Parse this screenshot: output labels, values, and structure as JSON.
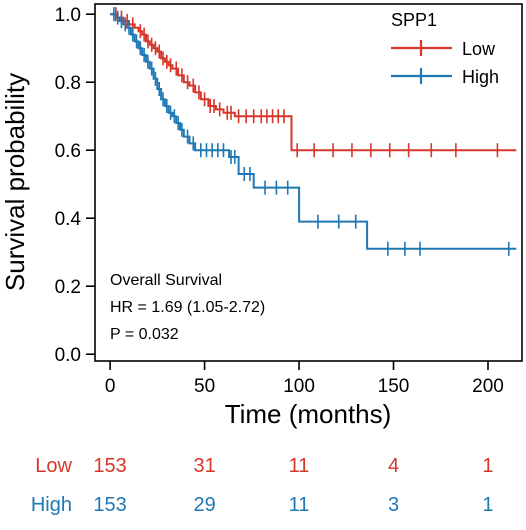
{
  "chart_data": {
    "type": "line",
    "subtype": "kaplan-meier",
    "xlabel": "Time (months)",
    "ylabel": "Survival probability",
    "xlim": [
      -8,
      218
    ],
    "ylim": [
      -0.02,
      1.03
    ],
    "xticks": [
      0,
      50,
      100,
      150,
      200
    ],
    "yticks": [
      0.0,
      0.2,
      0.4,
      0.6,
      0.8,
      1.0
    ],
    "ytick_labels": [
      "0.0",
      "0.2",
      "0.4",
      "0.6",
      "0.8",
      "1.0"
    ],
    "legend": {
      "title": "SPP1",
      "position": "top-right"
    },
    "series": [
      {
        "name": "Low",
        "color": "#d7372b",
        "steps": [
          [
            0,
            1.0
          ],
          [
            4,
            0.99
          ],
          [
            7,
            0.98
          ],
          [
            10,
            0.97
          ],
          [
            13,
            0.96
          ],
          [
            15,
            0.95
          ],
          [
            17,
            0.94
          ],
          [
            19,
            0.92
          ],
          [
            21,
            0.91
          ],
          [
            23,
            0.9
          ],
          [
            25,
            0.89
          ],
          [
            27,
            0.87
          ],
          [
            29,
            0.86
          ],
          [
            31,
            0.85
          ],
          [
            33,
            0.84
          ],
          [
            36,
            0.82
          ],
          [
            39,
            0.8
          ],
          [
            42,
            0.79
          ],
          [
            45,
            0.77
          ],
          [
            48,
            0.75
          ],
          [
            52,
            0.73
          ],
          [
            56,
            0.72
          ],
          [
            60,
            0.71
          ],
          [
            66,
            0.7
          ],
          [
            96,
            0.6
          ],
          [
            215,
            0.6
          ]
        ],
        "censor_times": [
          3,
          6,
          9,
          12,
          16,
          18,
          20,
          22,
          24,
          26,
          28,
          30,
          32,
          35,
          38,
          41,
          44,
          47,
          50,
          53,
          55,
          58,
          62,
          64,
          68,
          72,
          76,
          80,
          83,
          86,
          89,
          92,
          99,
          108,
          118,
          128,
          138,
          148,
          158,
          170,
          183,
          205
        ]
      },
      {
        "name": "High",
        "color": "#1f78b4",
        "steps": [
          [
            0,
            1.0
          ],
          [
            3,
            0.99
          ],
          [
            5,
            0.98
          ],
          [
            7,
            0.97
          ],
          [
            9,
            0.96
          ],
          [
            11,
            0.94
          ],
          [
            13,
            0.92
          ],
          [
            15,
            0.9
          ],
          [
            17,
            0.88
          ],
          [
            19,
            0.86
          ],
          [
            21,
            0.84
          ],
          [
            23,
            0.81
          ],
          [
            25,
            0.78
          ],
          [
            27,
            0.75
          ],
          [
            29,
            0.73
          ],
          [
            31,
            0.71
          ],
          [
            33,
            0.7
          ],
          [
            35,
            0.68
          ],
          [
            37,
            0.66
          ],
          [
            39,
            0.64
          ],
          [
            42,
            0.62
          ],
          [
            45,
            0.6
          ],
          [
            63,
            0.58
          ],
          [
            68,
            0.53
          ],
          [
            76,
            0.49
          ],
          [
            100,
            0.39
          ],
          [
            136,
            0.31
          ],
          [
            215,
            0.31
          ]
        ],
        "censor_times": [
          2,
          4,
          6,
          8,
          10,
          12,
          14,
          16,
          18,
          20,
          22,
          24,
          26,
          28,
          30,
          32,
          34,
          36,
          38,
          41,
          44,
          48,
          51,
          54,
          57,
          60,
          64,
          66,
          71,
          74,
          82,
          88,
          94,
          110,
          121,
          130,
          147,
          156,
          164,
          211
        ]
      }
    ],
    "annotations": [
      "Overall Survival",
      "HR = 1.69 (1.05-2.72)",
      "P = 0.032"
    ],
    "risk_table": {
      "times": [
        0,
        50,
        100,
        150,
        200
      ],
      "rows": [
        {
          "label": "Low",
          "color": "#d7372b",
          "counts": [
            153,
            31,
            11,
            4,
            1
          ]
        },
        {
          "label": "High",
          "color": "#1f78b4",
          "counts": [
            153,
            29,
            11,
            3,
            1
          ]
        }
      ]
    }
  }
}
